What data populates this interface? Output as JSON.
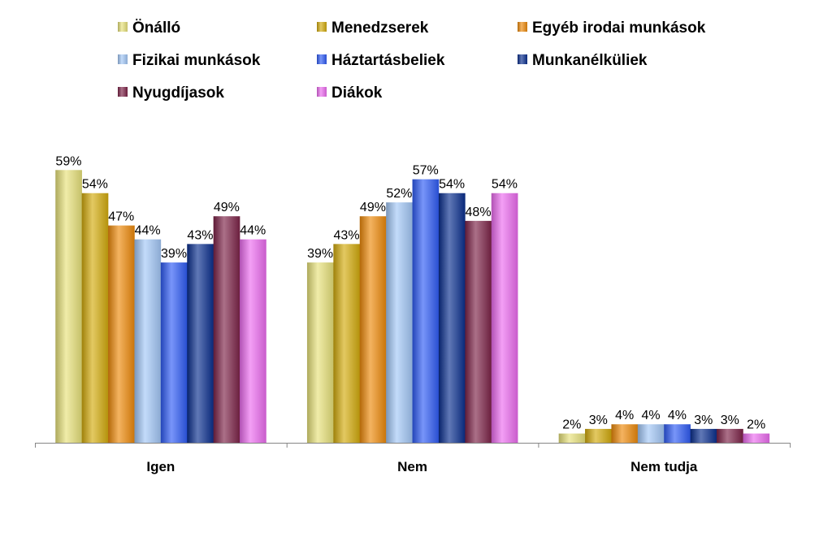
{
  "chart_data": {
    "type": "bar",
    "categories": [
      "Igen",
      "Nem",
      "Nem tudja"
    ],
    "series": [
      {
        "name": "Önálló",
        "values": [
          59,
          39,
          2
        ],
        "color": "#e8e27a"
      },
      {
        "name": "Menedzserek",
        "values": [
          54,
          43,
          3
        ],
        "color": "#d4ac0d"
      },
      {
        "name": "Egyéb irodai munkások",
        "values": [
          47,
          49,
          4
        ],
        "color": "#ee8a0a"
      },
      {
        "name": "Fizikai munkások",
        "values": [
          44,
          52,
          4
        ],
        "color": "#a3c8f7"
      },
      {
        "name": "Háztartásbeliek",
        "values": [
          39,
          57,
          4
        ],
        "color": "#2f5cf5"
      },
      {
        "name": "Munkanélküliek",
        "values": [
          43,
          54,
          3
        ],
        "color": "#0b2f8e"
      },
      {
        "name": "Nyugdíjasok",
        "values": [
          49,
          48,
          3
        ],
        "color": "#7d2348"
      },
      {
        "name": "Diákok",
        "values": [
          44,
          54,
          2
        ],
        "color": "#ec6cf0"
      }
    ],
    "value_suffix": "%",
    "ylim": [
      0,
      65
    ],
    "grid": false,
    "legend_position": "top"
  }
}
